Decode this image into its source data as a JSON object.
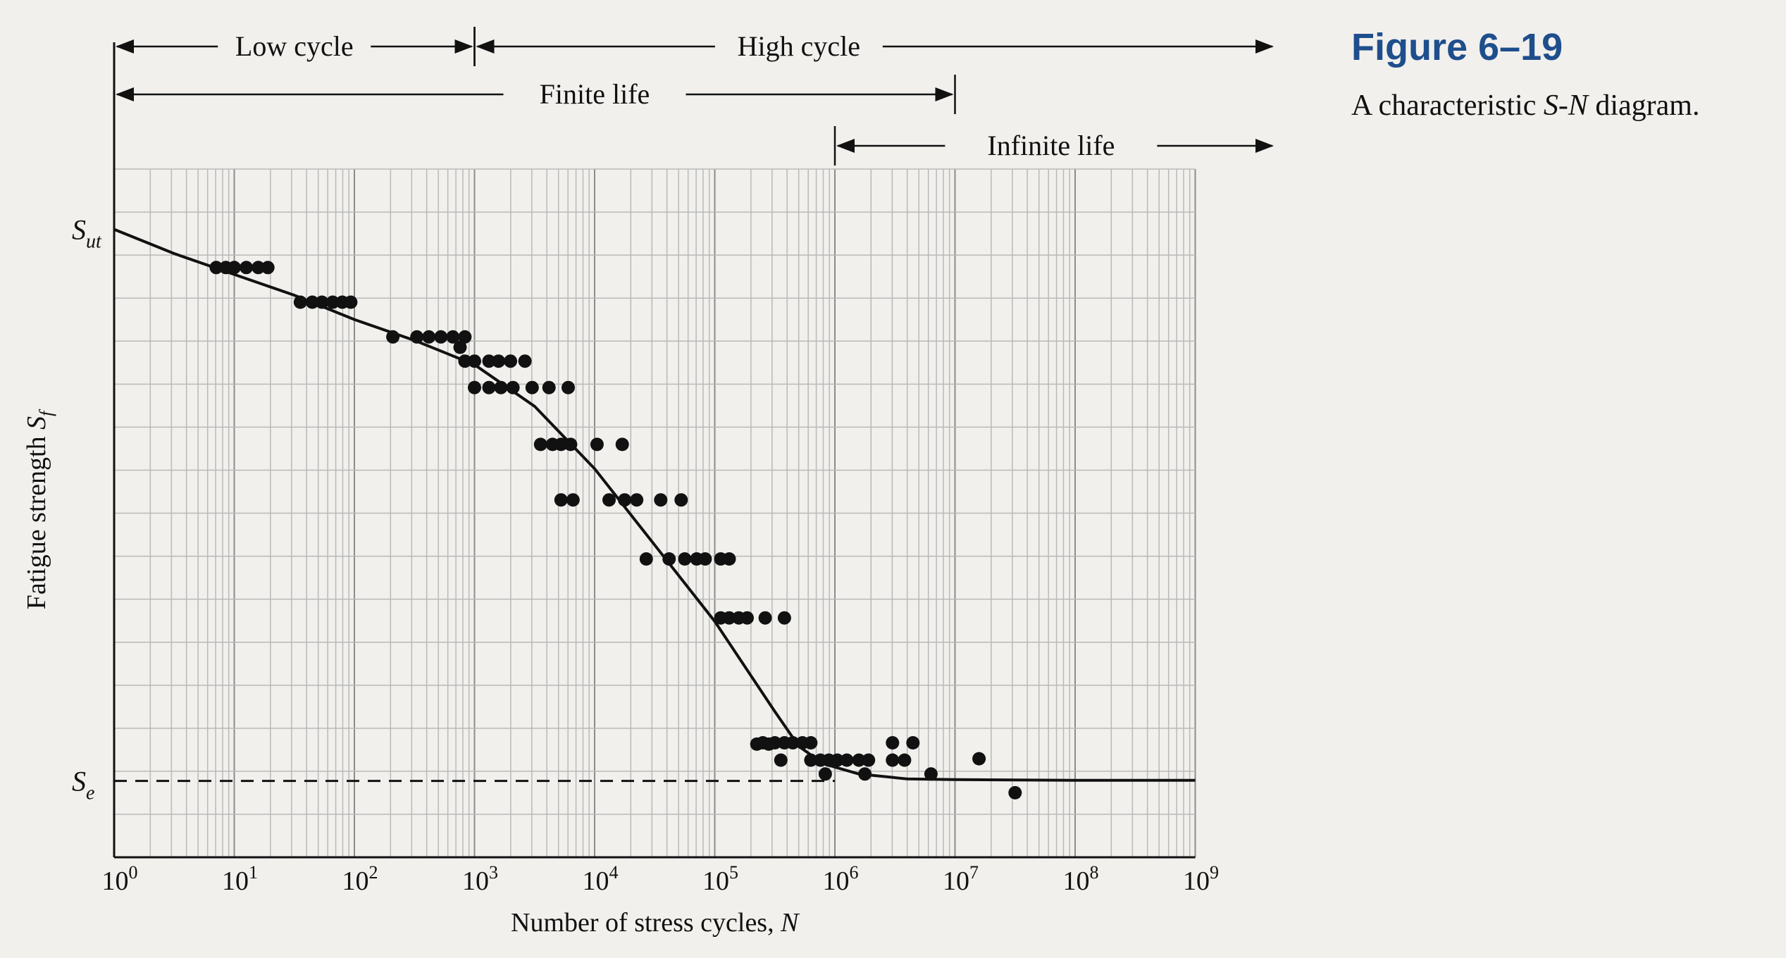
{
  "figure": {
    "number": "Figure 6–19",
    "caption_before": "A characteristic ",
    "caption_italic": "S-N",
    "caption_after": " diagram."
  },
  "chart_data": {
    "type": "scatter",
    "xlabel_text": "Number of stress cycles, ",
    "xlabel_symbol": "N",
    "ylabel_text": "Fatigue strength ",
    "ylabel_symbol": "S",
    "ylabel_sub": "f",
    "x_scale": "log",
    "xlim_exp": [
      0,
      9
    ],
    "ylim": [
      0,
      1
    ],
    "x_ticks": [
      {
        "base": "10",
        "exp": "0"
      },
      {
        "base": "10",
        "exp": "1"
      },
      {
        "base": "10",
        "exp": "2"
      },
      {
        "base": "10",
        "exp": "3"
      },
      {
        "base": "10",
        "exp": "4"
      },
      {
        "base": "10",
        "exp": "5"
      },
      {
        "base": "10",
        "exp": "6"
      },
      {
        "base": "10",
        "exp": "7"
      },
      {
        "base": "10",
        "exp": "8"
      },
      {
        "base": "10",
        "exp": "9"
      }
    ],
    "y_markers": [
      {
        "main": "S",
        "sub": "ut",
        "value": 0.905
      },
      {
        "main": "S",
        "sub": "e",
        "value": 0.11
      }
    ],
    "grid": true,
    "regions": [
      {
        "label": "Low cycle",
        "from_exp": 0,
        "to_exp": 3,
        "row": 1
      },
      {
        "label": "High cycle",
        "from_exp": 3,
        "to_exp": 10,
        "row": 1
      },
      {
        "label": "Finite life",
        "from_exp": 0,
        "to_exp": 7,
        "row": 2
      },
      {
        "label": "Infinite life",
        "from_exp": 6,
        "to_exp": 10,
        "row": 3
      }
    ],
    "curve": [
      [
        0,
        0.905
      ],
      [
        0.5,
        0.87
      ],
      [
        1,
        0.84
      ],
      [
        1.5,
        0.81
      ],
      [
        2,
        0.775
      ],
      [
        2.5,
        0.745
      ],
      [
        3,
        0.71
      ],
      [
        3.5,
        0.65
      ],
      [
        4,
        0.56
      ],
      [
        4.5,
        0.45
      ],
      [
        5,
        0.34
      ],
      [
        5.5,
        0.21
      ],
      [
        5.7,
        0.16
      ],
      [
        5.9,
        0.135
      ],
      [
        6.2,
        0.12
      ],
      [
        6.6,
        0.113
      ],
      [
        7,
        0.112
      ],
      [
        8,
        0.111
      ],
      [
        9,
        0.111
      ]
    ],
    "points": [
      [
        0.85,
        0.85
      ],
      [
        0.93,
        0.85
      ],
      [
        1.0,
        0.85
      ],
      [
        1.1,
        0.85
      ],
      [
        1.2,
        0.85
      ],
      [
        1.28,
        0.85
      ],
      [
        1.55,
        0.8
      ],
      [
        1.65,
        0.8
      ],
      [
        1.73,
        0.8
      ],
      [
        1.82,
        0.8
      ],
      [
        1.9,
        0.8
      ],
      [
        1.97,
        0.8
      ],
      [
        2.32,
        0.75
      ],
      [
        2.52,
        0.75
      ],
      [
        2.62,
        0.75
      ],
      [
        2.72,
        0.75
      ],
      [
        2.82,
        0.75
      ],
      [
        2.92,
        0.75
      ],
      [
        2.88,
        0.735
      ],
      [
        2.92,
        0.715
      ],
      [
        3.0,
        0.715
      ],
      [
        3.12,
        0.715
      ],
      [
        3.2,
        0.715
      ],
      [
        3.3,
        0.715
      ],
      [
        3.42,
        0.715
      ],
      [
        3.0,
        0.677
      ],
      [
        3.12,
        0.677
      ],
      [
        3.22,
        0.677
      ],
      [
        3.32,
        0.677
      ],
      [
        3.48,
        0.677
      ],
      [
        3.62,
        0.677
      ],
      [
        3.78,
        0.677
      ],
      [
        3.55,
        0.595
      ],
      [
        3.65,
        0.595
      ],
      [
        3.72,
        0.595
      ],
      [
        3.8,
        0.595
      ],
      [
        4.02,
        0.595
      ],
      [
        4.23,
        0.595
      ],
      [
        3.72,
        0.515
      ],
      [
        3.82,
        0.515
      ],
      [
        4.12,
        0.515
      ],
      [
        4.25,
        0.515
      ],
      [
        4.35,
        0.515
      ],
      [
        4.55,
        0.515
      ],
      [
        4.72,
        0.515
      ],
      [
        4.43,
        0.43
      ],
      [
        4.62,
        0.43
      ],
      [
        4.75,
        0.43
      ],
      [
        4.85,
        0.43
      ],
      [
        4.92,
        0.43
      ],
      [
        5.05,
        0.43
      ],
      [
        5.12,
        0.43
      ],
      [
        5.05,
        0.345
      ],
      [
        5.12,
        0.345
      ],
      [
        5.2,
        0.345
      ],
      [
        5.27,
        0.345
      ],
      [
        5.42,
        0.345
      ],
      [
        5.58,
        0.345
      ],
      [
        5.4,
        0.165
      ],
      [
        5.5,
        0.165
      ],
      [
        5.58,
        0.165
      ],
      [
        5.65,
        0.165
      ],
      [
        5.73,
        0.165
      ],
      [
        5.8,
        0.165
      ],
      [
        5.35,
        0.163
      ],
      [
        5.45,
        0.163
      ],
      [
        5.55,
        0.14
      ],
      [
        5.8,
        0.14
      ],
      [
        5.88,
        0.14
      ],
      [
        5.95,
        0.14
      ],
      [
        6.02,
        0.14
      ],
      [
        6.1,
        0.14
      ],
      [
        6.2,
        0.14
      ],
      [
        6.28,
        0.14
      ],
      [
        6.48,
        0.14
      ],
      [
        6.58,
        0.14
      ],
      [
        6.48,
        0.165
      ],
      [
        6.65,
        0.165
      ],
      [
        5.92,
        0.12
      ],
      [
        6.25,
        0.12
      ],
      [
        6.8,
        0.12
      ],
      [
        7.2,
        0.142
      ],
      [
        7.5,
        0.093
      ]
    ]
  }
}
